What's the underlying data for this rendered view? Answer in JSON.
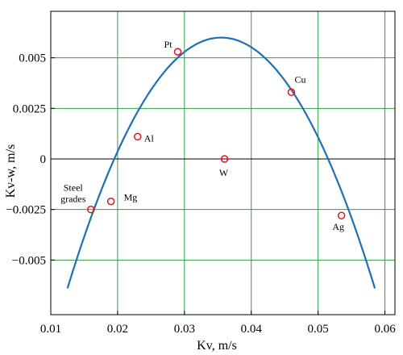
{
  "chart_data": {
    "type": "scatter",
    "title": "",
    "xlabel": "Kv, m/s",
    "ylabel": "Kv-w, m/s",
    "xlim": [
      0.01,
      0.0615
    ],
    "ylim": [
      -0.0077,
      0.0073
    ],
    "grid": true,
    "grid_color": "#2ea043",
    "curve_color": "#1f6fb2",
    "marker_color": "#e0141e",
    "zero_line": true,
    "x_ticks": [
      {
        "value": 0.01,
        "label": "0.01"
      },
      {
        "value": 0.02,
        "label": "0.02"
      },
      {
        "value": 0.03,
        "label": "0.03"
      },
      {
        "value": 0.04,
        "label": "0.04"
      },
      {
        "value": 0.05,
        "label": "0.05"
      },
      {
        "value": 0.06,
        "label": "0.06"
      }
    ],
    "y_ticks": [
      {
        "value": 0.005,
        "label": "0.005"
      },
      {
        "value": 0.0025,
        "label": "0.0025"
      },
      {
        "value": 0,
        "label": "0"
      },
      {
        "value": -0.0025,
        "label": "−0.0025"
      },
      {
        "value": -0.005,
        "label": "−0.005"
      }
    ],
    "points": [
      {
        "label": "Pt",
        "x": 0.029,
        "y": 0.0053
      },
      {
        "label": "Cu",
        "x": 0.046,
        "y": 0.0033
      },
      {
        "label": "Al",
        "x": 0.023,
        "y": 0.0011
      },
      {
        "label": "W",
        "x": 0.036,
        "y": 0.0
      },
      {
        "label": "Mg",
        "x": 0.019,
        "y": -0.0021
      },
      {
        "label": "Steel grades",
        "label_lines": [
          "Steel",
          "grades"
        ],
        "x": 0.016,
        "y": -0.0025
      },
      {
        "label": "Ag",
        "x": 0.0535,
        "y": -0.0028
      }
    ],
    "curve": {
      "type": "parabola",
      "vertex_x": 0.0355,
      "vertex_y": 0.006,
      "x_range": [
        0.0125,
        0.0585
      ]
    }
  }
}
